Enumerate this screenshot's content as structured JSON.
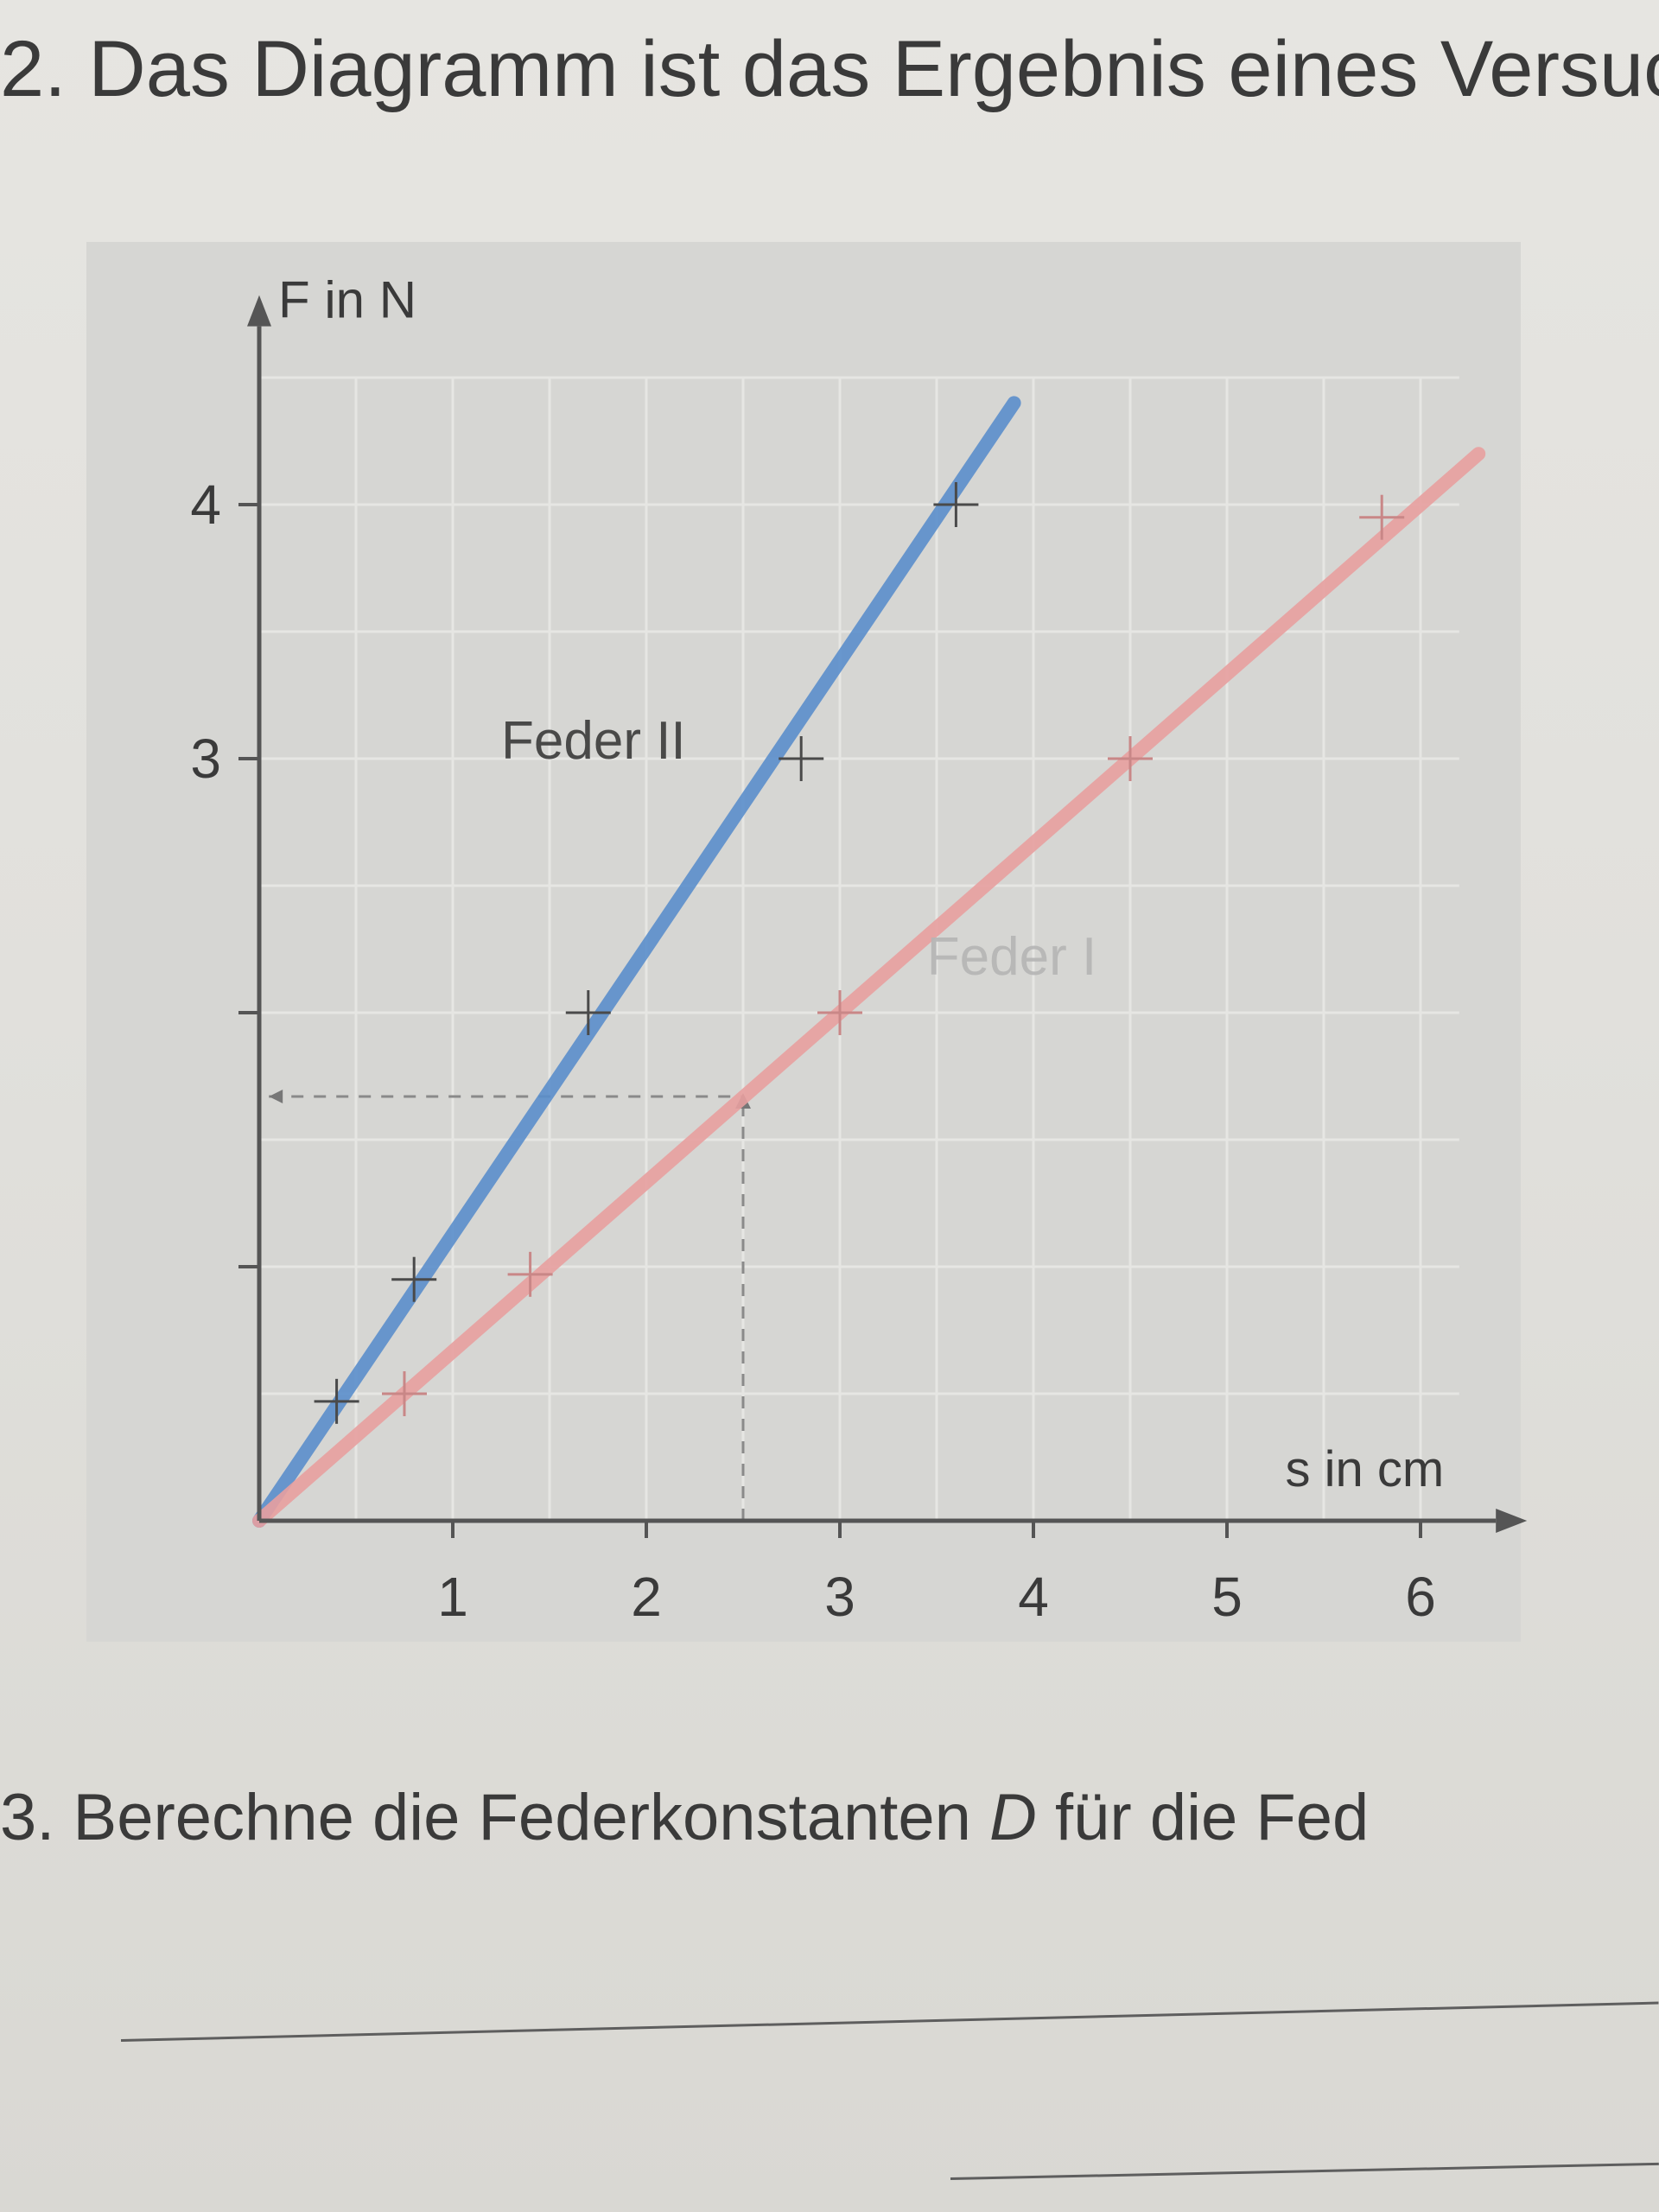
{
  "task2": {
    "number": "2.",
    "text": "Das Diagramm ist das Ergebnis eines Versuc"
  },
  "task3": {
    "number": "3.",
    "text_before": "Berechne die Federkonstanten ",
    "variable": "D",
    "text_after": " für die Fed"
  },
  "colors": {
    "feder2": "#5b8fcc",
    "feder1": "#e8a0a0",
    "text": "#3a3a3a",
    "axis": "#555555"
  },
  "chart_data": {
    "type": "line",
    "xlabel": "s in cm",
    "ylabel": "F in N",
    "xlim": [
      0,
      6.3
    ],
    "ylim": [
      0,
      4.6
    ],
    "x_ticks": [
      1,
      2,
      3,
      4,
      5,
      6
    ],
    "y_ticks": [
      1,
      2,
      3,
      4
    ],
    "y_tick_labels": [
      "",
      "",
      "3",
      "4"
    ],
    "grid": true,
    "reading_guide": {
      "x": 2.5,
      "y": 1.67
    },
    "series": [
      {
        "name": "Feder II",
        "line": [
          [
            0,
            0
          ],
          [
            3.9,
            4.4
          ]
        ],
        "points": [
          [
            0.4,
            0.47
          ],
          [
            0.8,
            0.95
          ],
          [
            1.7,
            2.0
          ],
          [
            2.8,
            3.0
          ],
          [
            3.6,
            4.0
          ]
        ]
      },
      {
        "name": "Feder I",
        "line": [
          [
            0,
            0
          ],
          [
            6.3,
            4.2
          ]
        ],
        "points": [
          [
            0.75,
            0.5
          ],
          [
            1.4,
            0.97
          ],
          [
            3.0,
            2.0
          ],
          [
            4.5,
            3.0
          ],
          [
            5.8,
            3.95
          ]
        ]
      }
    ]
  }
}
